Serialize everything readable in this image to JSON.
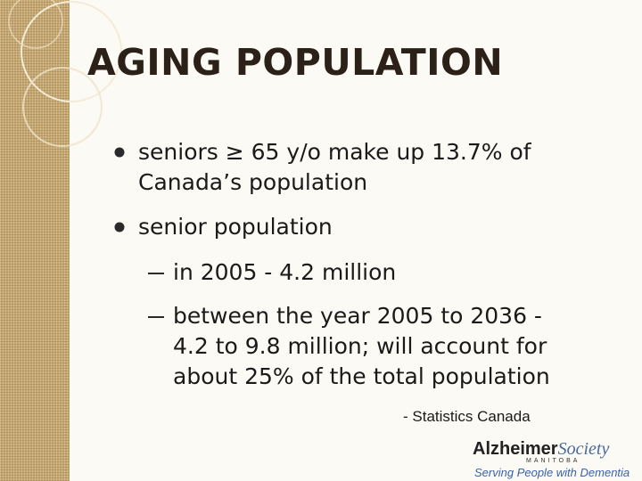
{
  "header": {
    "title": "AGING POPULATION"
  },
  "bullets": [
    {
      "lines": [
        "seniors ≥ 65 y/o make up 13.7% of",
        "Canada’s population"
      ]
    },
    {
      "lines": [
        "senior population"
      ],
      "sub": [
        {
          "lines": [
            "in 2005 - 4.2 million"
          ]
        },
        {
          "lines": [
            "between the year 2005 to 2036 -",
            "4.2 to 9.8 million; will account for",
            "about 25% of the total population"
          ]
        }
      ]
    }
  ],
  "source": "- Statistics Canada",
  "logo": {
    "name_bold": "Alzheimer",
    "name_italic": "Society",
    "region": "MANITOBA",
    "tagline": "Serving People with Dementia"
  }
}
